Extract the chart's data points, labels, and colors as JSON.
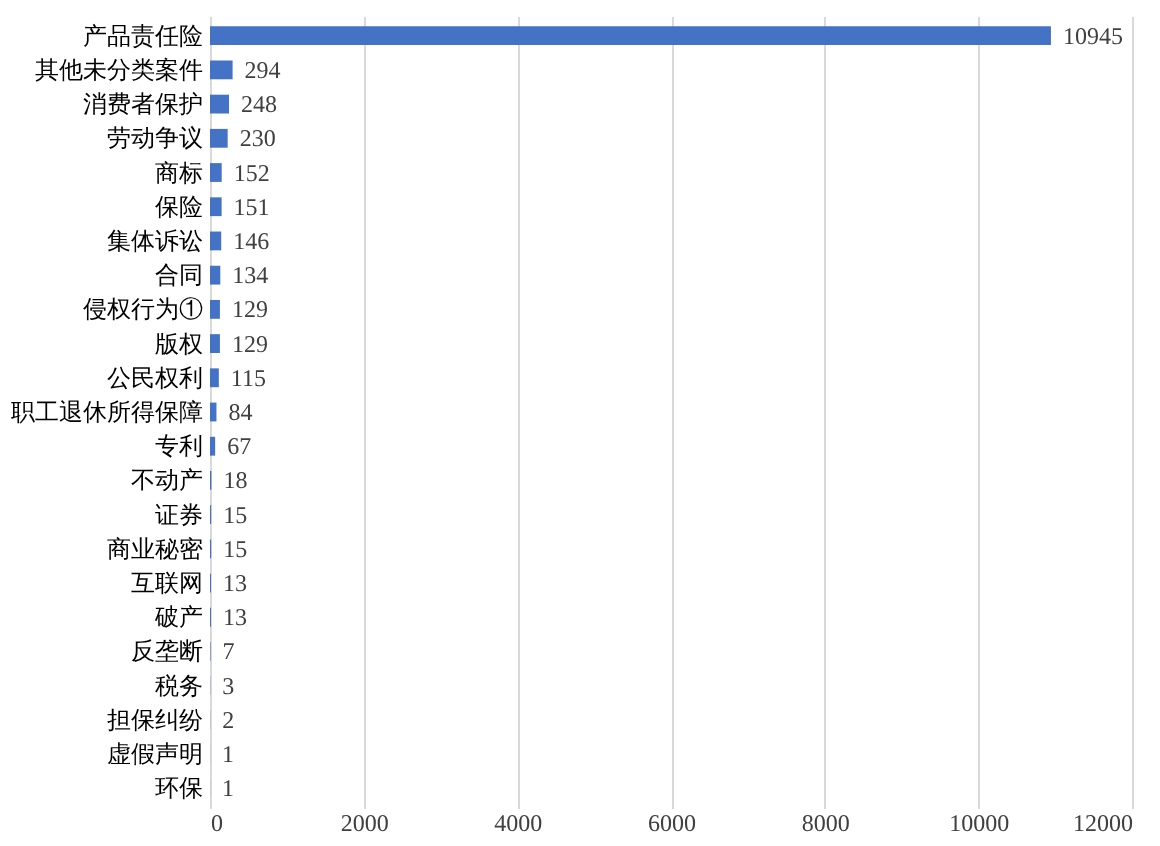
{
  "chart_data": {
    "type": "bar",
    "orientation": "horizontal",
    "color": "#4472c4",
    "data_labels": true,
    "grid": "x",
    "categories": [
      "产品责任险",
      "其他未分类案件",
      "消费者保护",
      "劳动争议",
      "商标",
      "保险",
      "集体诉讼",
      "合同",
      "侵权行为①",
      "版权",
      "公民权利",
      "职工退休所得保障",
      "专利",
      "不动产",
      "证券",
      "商业秘密",
      "互联网",
      "破产",
      "反垄断",
      "税务",
      "担保纠纷",
      "虚假声明",
      "环保"
    ],
    "values": [
      10945,
      294,
      248,
      230,
      152,
      151,
      146,
      134,
      129,
      129,
      115,
      84,
      67,
      18,
      15,
      15,
      13,
      13,
      7,
      3,
      2,
      1,
      1
    ],
    "xlim": [
      0,
      12000
    ],
    "xticks": [
      0,
      2000,
      4000,
      6000,
      8000,
      10000,
      12000
    ]
  }
}
